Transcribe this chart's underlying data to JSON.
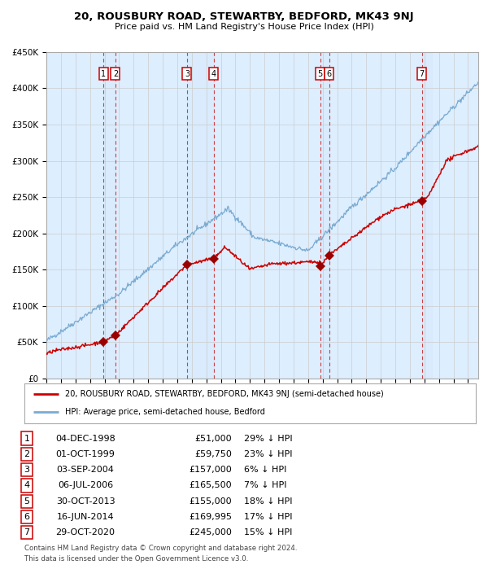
{
  "title": "20, ROUSBURY ROAD, STEWARTBY, BEDFORD, MK43 9NJ",
  "subtitle": "Price paid vs. HM Land Registry's House Price Index (HPI)",
  "sales": [
    {
      "num": 1,
      "date": "04-DEC-1998",
      "year": 1998.92,
      "price": 51000,
      "pct": "29%"
    },
    {
      "num": 2,
      "date": "01-OCT-1999",
      "year": 1999.75,
      "price": 59750,
      "pct": "23%"
    },
    {
      "num": 3,
      "date": "03-SEP-2004",
      "year": 2004.67,
      "price": 157000,
      "pct": "6%"
    },
    {
      "num": 4,
      "date": "06-JUL-2006",
      "year": 2006.52,
      "price": 165500,
      "pct": "7%"
    },
    {
      "num": 5,
      "date": "30-OCT-2013",
      "year": 2013.83,
      "price": 155000,
      "pct": "18%"
    },
    {
      "num": 6,
      "date": "16-JUN-2014",
      "year": 2014.46,
      "price": 169995,
      "pct": "17%"
    },
    {
      "num": 7,
      "date": "29-OCT-2020",
      "year": 2020.83,
      "price": 245000,
      "pct": "15%"
    }
  ],
  "legend_label_red": "20, ROUSBURY ROAD, STEWARTBY, BEDFORD, MK43 9NJ (semi-detached house)",
  "legend_label_blue": "HPI: Average price, semi-detached house, Bedford",
  "footer1": "Contains HM Land Registry data © Crown copyright and database right 2024.",
  "footer2": "This data is licensed under the Open Government Licence v3.0.",
  "ylim": [
    0,
    450000
  ],
  "xlim_start": 1995.0,
  "xlim_end": 2024.7,
  "red_color": "#cc0000",
  "blue_color": "#7aaad0",
  "bg_color": "#ddeeff",
  "grid_color": "#cccccc",
  "shaded_pairs": [
    [
      1998.92,
      1999.75
    ],
    [
      2004.67,
      2006.52
    ],
    [
      2013.83,
      2014.46
    ],
    [
      2020.83,
      2021.5
    ]
  ]
}
